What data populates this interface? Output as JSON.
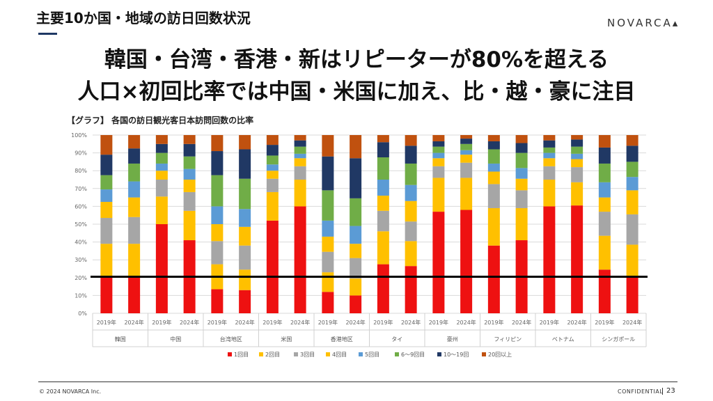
{
  "header": {
    "title": "主要10か国・地域の訪日回数状況",
    "brand": "NOVARCA"
  },
  "headline": {
    "line1": "韓国・台湾・香港・新はリピーターが80%を超える",
    "line2": "人口×初回比率では中国・米国に加え、比・越・豪に注目"
  },
  "chart_title": "【グラフ】 各国の訪日観光客日本訪問回数の比率",
  "chart_data": {
    "type": "bar",
    "stacked": true,
    "title": "【グラフ】 各国の訪日観光客日本訪問回数の比率",
    "y_ticks": [
      "0%",
      "10%",
      "20%",
      "30%",
      "40%",
      "50%",
      "60%",
      "70%",
      "80%",
      "90%",
      "100%"
    ],
    "ylim": [
      0,
      100
    ],
    "reference_line": 20.5,
    "colors": [
      "#ee1111",
      "#ffc000",
      "#a6a6a6",
      "#ffc000",
      "#5b9bd5",
      "#70ad47",
      "#203864",
      "#c0510f"
    ],
    "series_names": [
      "1回目",
      "2回目",
      "3回目",
      "4回目",
      "5回目",
      "6～9回目",
      "10～19回",
      "20回以上"
    ],
    "groups": [
      {
        "name": "韓国",
        "bars": [
          {
            "year": "2019年",
            "values": [
              20.5,
              18.5,
              14.5,
              9.0,
              7.0,
              8.0,
              11.5,
              11.0
            ]
          },
          {
            "year": "2024年",
            "values": [
              20.5,
              18.5,
              15.0,
              11.0,
              9.0,
              10.0,
              8.5,
              7.5
            ]
          }
        ]
      },
      {
        "name": "中国",
        "bars": [
          {
            "year": "2019年",
            "values": [
              50.0,
              15.5,
              9.5,
              5.0,
              4.0,
              6.0,
              5.0,
              5.0
            ]
          },
          {
            "year": "2024年",
            "values": [
              41.0,
              16.5,
              10.5,
              7.0,
              6.0,
              7.0,
              7.0,
              5.0
            ]
          }
        ]
      },
      {
        "name": "台湾地区",
        "bars": [
          {
            "year": "2019年",
            "values": [
              13.5,
              14.0,
              13.0,
              9.5,
              10.0,
              17.5,
              13.5,
              9.0
            ]
          },
          {
            "year": "2024年",
            "values": [
              13.0,
              11.5,
              13.5,
              10.5,
              10.0,
              17.0,
              16.5,
              8.0
            ]
          }
        ]
      },
      {
        "name": "米国",
        "bars": [
          {
            "year": "2019年",
            "values": [
              52.0,
              16.0,
              7.5,
              4.5,
              3.5,
              5.0,
              6.0,
              5.5
            ]
          },
          {
            "year": "2024年",
            "values": [
              60.0,
              15.0,
              7.5,
              4.5,
              2.5,
              4.0,
              3.5,
              3.0
            ]
          }
        ]
      },
      {
        "name": "香港地区",
        "bars": [
          {
            "year": "2019年",
            "values": [
              12.0,
              11.0,
              11.5,
              8.5,
              9.0,
              17.0,
              19.0,
              12.0
            ]
          },
          {
            "year": "2024年",
            "values": [
              10.0,
              9.5,
              11.5,
              8.0,
              10.0,
              15.5,
              22.5,
              13.0
            ]
          }
        ]
      },
      {
        "name": "タイ",
        "bars": [
          {
            "year": "2019年",
            "values": [
              27.5,
              18.5,
              11.5,
              8.5,
              9.0,
              12.5,
              8.5,
              4.0
            ]
          },
          {
            "year": "2024年",
            "values": [
              26.5,
              14.0,
              11.0,
              11.5,
              9.0,
              12.0,
              10.0,
              6.0
            ]
          }
        ]
      },
      {
        "name": "豪州",
        "bars": [
          {
            "year": "2019年",
            "values": [
              57.0,
              19.0,
              6.5,
              4.5,
              3.0,
              3.5,
              3.0,
              3.5
            ]
          },
          {
            "year": "2024年",
            "values": [
              58.0,
              18.0,
              8.5,
              4.5,
              2.5,
              3.5,
              3.0,
              2.0
            ]
          }
        ]
      },
      {
        "name": "フィリピン",
        "bars": [
          {
            "year": "2019年",
            "values": [
              38.0,
              21.0,
              13.5,
              7.0,
              4.5,
              8.0,
              4.5,
              3.5
            ]
          },
          {
            "year": "2024年",
            "values": [
              41.0,
              18.0,
              10.0,
              6.5,
              6.0,
              8.5,
              5.5,
              4.5
            ]
          }
        ]
      },
      {
        "name": "ベトナム",
        "bars": [
          {
            "year": "2019年",
            "values": [
              60.0,
              15.0,
              7.5,
              4.5,
              3.0,
              3.0,
              4.0,
              3.0
            ]
          },
          {
            "year": "2024年",
            "values": [
              60.5,
              13.0,
              8.5,
              4.5,
              3.0,
              4.0,
              4.0,
              2.5
            ]
          }
        ]
      },
      {
        "name": "シンガポール",
        "bars": [
          {
            "year": "2019年",
            "values": [
              24.5,
              19.0,
              13.5,
              8.0,
              8.5,
              10.5,
              9.0,
              7.0
            ]
          },
          {
            "year": "2024年",
            "values": [
              20.5,
              18.0,
              17.0,
              13.5,
              7.5,
              8.5,
              9.0,
              6.0
            ]
          }
        ]
      }
    ]
  },
  "footer": {
    "copyright": "© 2024 NOVARCA Inc.",
    "confidential": "CONFIDENTIAL",
    "page_number": "23"
  }
}
